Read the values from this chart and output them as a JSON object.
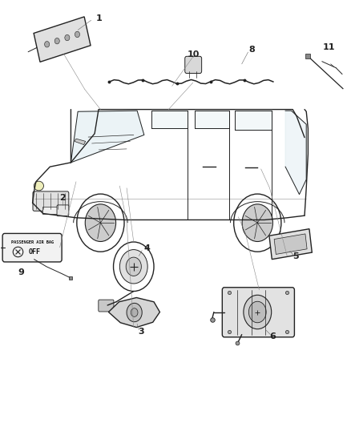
{
  "background_color": "#ffffff",
  "fig_width": 4.38,
  "fig_height": 5.33,
  "dpi": 100,
  "line_color": "#222222"
}
